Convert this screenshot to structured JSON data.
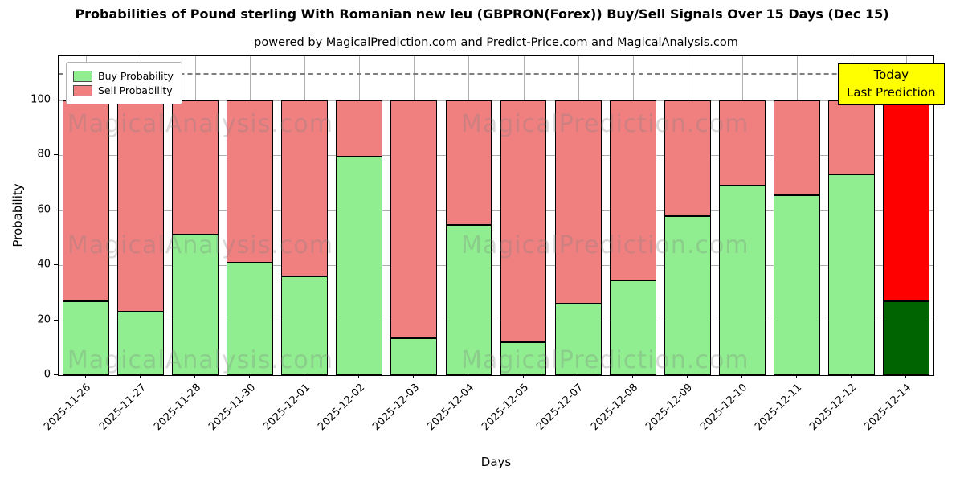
{
  "title": "Probabilities of Pound sterling With Romanian new leu (GBPRON(Forex)) Buy/Sell Signals Over 15 Days (Dec 15)",
  "subtitle": "powered by MagicalPrediction.com and Predict-Price.com and MagicalAnalysis.com",
  "watermarks": [
    "MagicalAnalysis.com",
    "MagicalPrediction.com"
  ],
  "annotation": {
    "line1": "Today",
    "line2": "Last Prediction",
    "bg_color": "#ffff00"
  },
  "chart_data": {
    "type": "bar",
    "stacked": true,
    "title": "Probabilities of Pound sterling With Romanian new leu (GBPRON(Forex)) Buy/Sell Signals Over 15 Days (Dec 15)",
    "xlabel": "Days",
    "ylabel": "Probability",
    "categories": [
      "2025-11-26",
      "2025-11-27",
      "2025-11-28",
      "2025-11-30",
      "2025-12-01",
      "2025-12-02",
      "2025-12-03",
      "2025-12-04",
      "2025-12-05",
      "2025-12-07",
      "2025-12-08",
      "2025-12-09",
      "2025-12-10",
      "2025-12-11",
      "2025-12-12",
      "2025-12-14"
    ],
    "series": [
      {
        "name": "Buy Probability",
        "color": "#90ee90",
        "highlight_color": "#006400",
        "values": [
          27,
          23,
          51,
          41,
          36,
          79.5,
          13.5,
          54.5,
          12,
          26,
          34.5,
          58,
          69,
          65.5,
          73,
          27
        ]
      },
      {
        "name": "Sell Probability",
        "color": "#f08080",
        "highlight_color": "#ff0000",
        "values": [
          73,
          77,
          49,
          59,
          64,
          20.5,
          86.5,
          45.5,
          88,
          74,
          65.5,
          42,
          31,
          34.5,
          27,
          73
        ]
      }
    ],
    "highlight_index": 15,
    "yticks": [
      0,
      20,
      40,
      60,
      80,
      100
    ],
    "ylim": [
      0,
      116
    ],
    "dashed_line_y": 110,
    "bar_width_fraction": 0.85,
    "grid": true,
    "legend_position": "upper left"
  }
}
